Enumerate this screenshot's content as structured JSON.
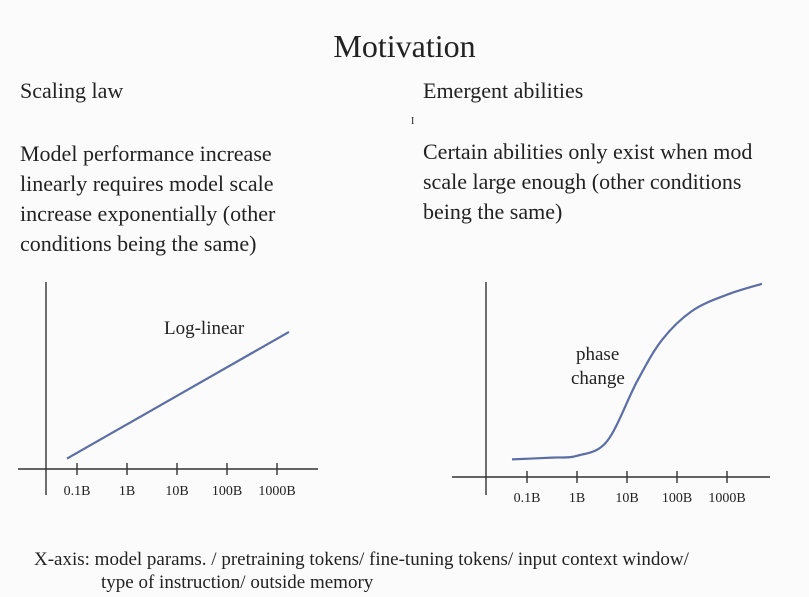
{
  "title": "Motivation",
  "left": {
    "heading": "Scaling law",
    "body_lines": [
      "Model performance increase",
      "linearly requires model scale",
      "increase exponentially (other",
      "conditions being the same)"
    ],
    "chart_label": "Log-linear"
  },
  "right": {
    "heading": "Emergent abilities",
    "body_lines": [
      "Certain abilities only exist when mod",
      "scale large enough (other conditions",
      "being the same)"
    ],
    "chart_label_lines": [
      "phase",
      "change"
    ]
  },
  "chart_data": [
    {
      "type": "line",
      "title": "",
      "xlabel": "",
      "ylabel": "",
      "x_scale": "log",
      "categories": [
        "0.1B",
        "1B",
        "10B",
        "100B",
        "1000B"
      ],
      "annotation": "Log-linear",
      "series": [
        {
          "x": [
            "0.1B",
            "1000B"
          ],
          "y_relative": [
            0.07,
            0.92
          ]
        }
      ]
    },
    {
      "type": "line",
      "title": "",
      "xlabel": "",
      "ylabel": "",
      "x_scale": "log",
      "categories": [
        "0.1B",
        "1B",
        "10B",
        "100B",
        "1000B"
      ],
      "annotation": "phase change",
      "series": [
        {
          "x_index": [
            -0.3,
            0.5,
            1.0,
            1.6,
            2.2,
            2.7,
            3.3,
            4.0,
            4.7
          ],
          "y_relative": [
            0.02,
            0.03,
            0.04,
            0.12,
            0.45,
            0.68,
            0.84,
            0.93,
            0.99
          ]
        }
      ]
    }
  ],
  "caption_lines": [
    "X-axis: model params. / pretraining tokens/ fine-tuning tokens/ input context window/",
    "type of instruction/ outside memory"
  ],
  "stray_mark": "I"
}
